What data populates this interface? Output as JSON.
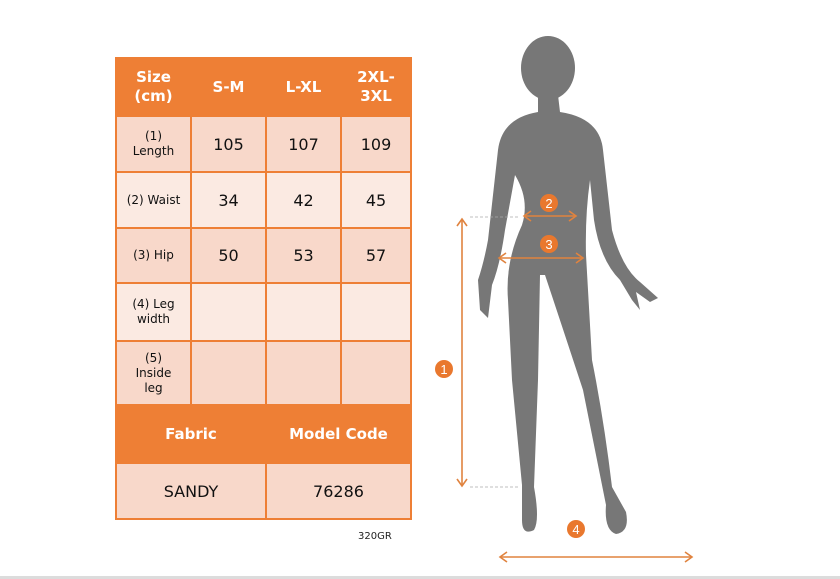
{
  "size_table": {
    "headers": [
      "Size (cm)",
      "S-M",
      "L-XL",
      "2XL-3XL"
    ],
    "rows": [
      {
        "label": "(1) Length",
        "values": [
          "105",
          "107",
          "109"
        ]
      },
      {
        "label": "(2) Waist",
        "values": [
          "34",
          "42",
          "45"
        ]
      },
      {
        "label": "(3) Hip",
        "values": [
          "50",
          "53",
          "57"
        ]
      },
      {
        "label": "(4) Leg width",
        "values": [
          "",
          "",
          ""
        ]
      },
      {
        "label": "(5) Inside leg",
        "values": [
          "",
          "",
          ""
        ]
      }
    ]
  },
  "info_table": {
    "headers": [
      "Fabric",
      "Model Code"
    ],
    "values": [
      "SANDY",
      "76286"
    ]
  },
  "fabric_weight": "320GR",
  "diagram": {
    "markers": [
      "1",
      "2",
      "3",
      "4"
    ]
  },
  "colors": {
    "accent": "#ee7f35",
    "row_dark": "#f8d8ca",
    "row_light": "#fbeae2",
    "silhouette": "#777777"
  }
}
